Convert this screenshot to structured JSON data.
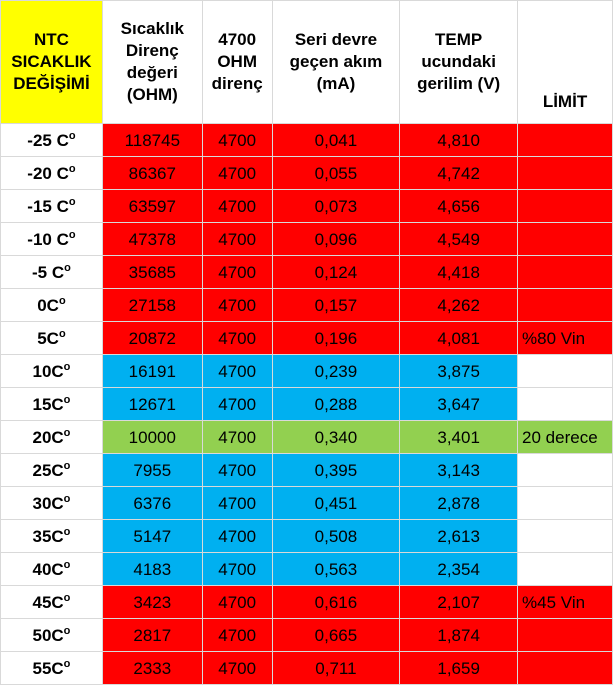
{
  "headers": {
    "col0": [
      "NTC",
      "SICAKLIK",
      "DEĞİŞİMİ"
    ],
    "col1": [
      "Sıcaklık",
      "Direnç",
      "değeri",
      "(OHM)"
    ],
    "col2": [
      "4700",
      "OHM",
      "direnç"
    ],
    "col3": [
      "Seri devre",
      "geçen akım",
      "(mA)"
    ],
    "col4": [
      "TEMP",
      "ucundaki",
      "gerilim (V)"
    ],
    "col5": [
      "LİMİT"
    ]
  },
  "rows": [
    {
      "temp": "-25 C",
      "sup": "o",
      "res": "118745",
      "fixed": "4700",
      "current": "0,041",
      "voltage": "4,810",
      "limit": "",
      "band": "red",
      "limit_bg": "red"
    },
    {
      "temp": "-20 C",
      "sup": "o",
      "res": "86367",
      "fixed": "4700",
      "current": "0,055",
      "voltage": "4,742",
      "limit": "",
      "band": "red",
      "limit_bg": "red"
    },
    {
      "temp": "-15 C",
      "sup": "o",
      "res": "63597",
      "fixed": "4700",
      "current": "0,073",
      "voltage": "4,656",
      "limit": "",
      "band": "red",
      "limit_bg": "red"
    },
    {
      "temp": "-10 C",
      "sup": "o",
      "res": "47378",
      "fixed": "4700",
      "current": "0,096",
      "voltage": "4,549",
      "limit": "",
      "band": "red",
      "limit_bg": "red"
    },
    {
      "temp": "-5 C",
      "sup": "o",
      "res": "35685",
      "fixed": "4700",
      "current": "0,124",
      "voltage": "4,418",
      "limit": "",
      "band": "red",
      "limit_bg": "red"
    },
    {
      "temp": "0C",
      "sup": "o",
      "res": "27158",
      "fixed": "4700",
      "current": "0,157",
      "voltage": "4,262",
      "limit": "",
      "band": "red",
      "limit_bg": "red"
    },
    {
      "temp": "5C",
      "sup": "o",
      "res": "20872",
      "fixed": "4700",
      "current": "0,196",
      "voltage": "4,081",
      "limit": "%80 Vin",
      "band": "red",
      "limit_bg": "red"
    },
    {
      "temp": "10C",
      "sup": "o",
      "res": "16191",
      "fixed": "4700",
      "current": "0,239",
      "voltage": "3,875",
      "limit": "",
      "band": "blue",
      "limit_bg": "white"
    },
    {
      "temp": "15C",
      "sup": "o",
      "res": "12671",
      "fixed": "4700",
      "current": "0,288",
      "voltage": "3,647",
      "limit": "",
      "band": "blue",
      "limit_bg": "white"
    },
    {
      "temp": "20C",
      "sup": "o",
      "res": "10000",
      "fixed": "4700",
      "current": "0,340",
      "voltage": "3,401",
      "limit": "20 derece",
      "band": "green",
      "limit_bg": "green"
    },
    {
      "temp": "25C",
      "sup": "o",
      "res": "7955",
      "fixed": "4700",
      "current": "0,395",
      "voltage": "3,143",
      "limit": "",
      "band": "blue",
      "limit_bg": "white"
    },
    {
      "temp": "30C",
      "sup": "o",
      "res": "6376",
      "fixed": "4700",
      "current": "0,451",
      "voltage": "2,878",
      "limit": "",
      "band": "blue",
      "limit_bg": "white"
    },
    {
      "temp": "35C",
      "sup": "o",
      "res": "5147",
      "fixed": "4700",
      "current": "0,508",
      "voltage": "2,613",
      "limit": "",
      "band": "blue",
      "limit_bg": "white"
    },
    {
      "temp": "40C",
      "sup": "o",
      "res": "4183",
      "fixed": "4700",
      "current": "0,563",
      "voltage": "2,354",
      "limit": "",
      "band": "blue",
      "limit_bg": "white"
    },
    {
      "temp": "45C",
      "sup": "o",
      "res": "3423",
      "fixed": "4700",
      "current": "0,616",
      "voltage": "2,107",
      "limit": "%45 Vin",
      "band": "red",
      "limit_bg": "red"
    },
    {
      "temp": "50C",
      "sup": "o",
      "res": "2817",
      "fixed": "4700",
      "current": "0,665",
      "voltage": "1,874",
      "limit": "",
      "band": "red",
      "limit_bg": "red"
    },
    {
      "temp": "55C",
      "sup": "o",
      "res": "2333",
      "fixed": "4700",
      "current": "0,711",
      "voltage": "1,659",
      "limit": "",
      "band": "red",
      "limit_bg": "red"
    }
  ],
  "colors": {
    "red": "#ff0000",
    "blue": "#00b0f0",
    "green": "#92d050",
    "yellow": "#ffff00",
    "white": "#ffffff"
  }
}
